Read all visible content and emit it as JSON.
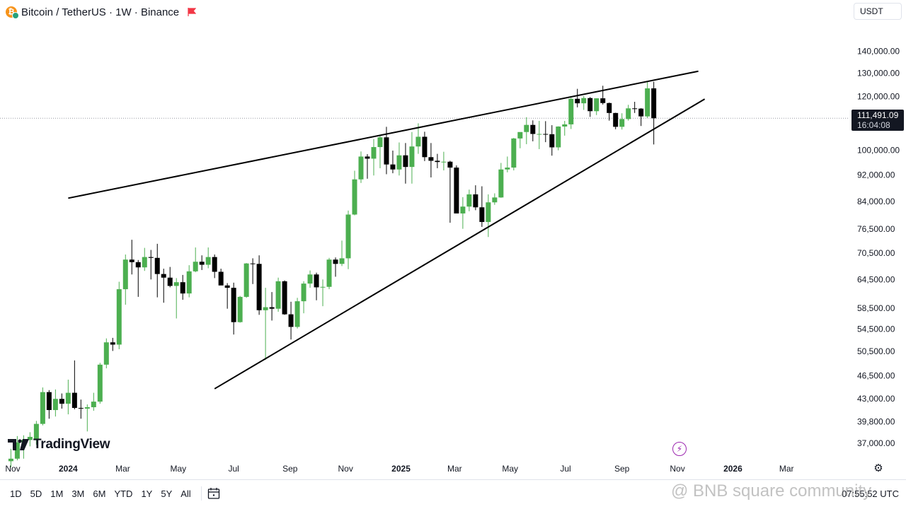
{
  "header": {
    "symbol_title": "Bitcoin / TetherUS · 1W · Binance",
    "coin_icon": "bitcoin-icon",
    "flag_icon": "flag-icon"
  },
  "currency": {
    "label": "USDT"
  },
  "price_badge": {
    "price": "111,491.09",
    "countdown": "16:04:08"
  },
  "logo": {
    "text": "TradingView"
  },
  "bottom_bar": {
    "ranges": [
      "1D",
      "5D",
      "1M",
      "3M",
      "6M",
      "YTD",
      "1Y",
      "5Y",
      "All"
    ],
    "clock": "07:55:52 UTC"
  },
  "watermark": {
    "text": "@ BNB square community"
  },
  "colors": {
    "up": "#4caf50",
    "down": "#000000",
    "line": "#000000",
    "last_price_line": "#9598a1"
  },
  "chart_data": {
    "type": "candlestick",
    "title": "Bitcoin / TetherUS · 1W · Binance",
    "scale": "log",
    "ylim": [
      35000,
      155000
    ],
    "y_ticks": [
      {
        "value": 140000,
        "label": "140,000.00"
      },
      {
        "value": 130000,
        "label": "130,000.00"
      },
      {
        "value": 120000,
        "label": "120,000.00"
      },
      {
        "value": 100000,
        "label": "100,000.00"
      },
      {
        "value": 92000,
        "label": "92,000.00"
      },
      {
        "value": 84000,
        "label": "84,000.00"
      },
      {
        "value": 76500,
        "label": "76,500.00"
      },
      {
        "value": 70500,
        "label": "70,500.00"
      },
      {
        "value": 64500,
        "label": "64,500.00"
      },
      {
        "value": 58500,
        "label": "58,500.00"
      },
      {
        "value": 54500,
        "label": "54,500.00"
      },
      {
        "value": 50500,
        "label": "50,500.00"
      },
      {
        "value": 46500,
        "label": "46,500.00"
      },
      {
        "value": 43000,
        "label": "43,000.00"
      },
      {
        "value": 39800,
        "label": "39,800.00"
      },
      {
        "value": 37000,
        "label": "37,000.00"
      }
    ],
    "x_ticks": [
      {
        "date": "2023-11-01",
        "label": "Nov"
      },
      {
        "date": "2024-01-01",
        "label": "2024"
      },
      {
        "date": "2024-03-01",
        "label": "Mar"
      },
      {
        "date": "2024-05-01",
        "label": "May"
      },
      {
        "date": "2024-07-01",
        "label": "Jul"
      },
      {
        "date": "2024-09-01",
        "label": "Sep"
      },
      {
        "date": "2024-11-01",
        "label": "Nov"
      },
      {
        "date": "2025-01-01",
        "label": "2025"
      },
      {
        "date": "2025-03-01",
        "label": "Mar"
      },
      {
        "date": "2025-05-01",
        "label": "May"
      },
      {
        "date": "2025-07-01",
        "label": "Jul"
      },
      {
        "date": "2025-09-01",
        "label": "Sep"
      },
      {
        "date": "2025-11-01",
        "label": "Nov"
      },
      {
        "date": "2026-01-01",
        "label": "2026"
      },
      {
        "date": "2026-03-01",
        "label": "Mar"
      }
    ],
    "xlim": [
      "2023-10-18",
      "2026-05-06"
    ],
    "last_price": 111491.09,
    "candles": [
      {
        "date": "2023-10-30",
        "o": 34800,
        "h": 36300,
        "l": 34100,
        "c": 35100
      },
      {
        "date": "2023-11-06",
        "o": 35100,
        "h": 37900,
        "l": 34900,
        "c": 37100
      },
      {
        "date": "2023-11-13",
        "o": 37100,
        "h": 38000,
        "l": 35100,
        "c": 37400
      },
      {
        "date": "2023-11-20",
        "o": 37400,
        "h": 38400,
        "l": 36600,
        "c": 37800
      },
      {
        "date": "2023-11-27",
        "o": 37500,
        "h": 39900,
        "l": 36800,
        "c": 39500
      },
      {
        "date": "2023-12-04",
        "o": 39500,
        "h": 44700,
        "l": 39300,
        "c": 44000
      },
      {
        "date": "2023-12-11",
        "o": 44000,
        "h": 44300,
        "l": 40200,
        "c": 41400
      },
      {
        "date": "2023-12-18",
        "o": 41400,
        "h": 44400,
        "l": 40500,
        "c": 43000
      },
      {
        "date": "2023-12-25",
        "o": 43000,
        "h": 43800,
        "l": 41600,
        "c": 42300
      },
      {
        "date": "2024-01-01",
        "o": 42300,
        "h": 45900,
        "l": 40800,
        "c": 43900
      },
      {
        "date": "2024-01-08",
        "o": 43900,
        "h": 49000,
        "l": 41500,
        "c": 41700
      },
      {
        "date": "2024-01-15",
        "o": 41700,
        "h": 42900,
        "l": 40200,
        "c": 41600
      },
      {
        "date": "2024-01-22",
        "o": 41600,
        "h": 42200,
        "l": 38500,
        "c": 41800
      },
      {
        "date": "2024-01-29",
        "o": 41800,
        "h": 43900,
        "l": 41300,
        "c": 42600
      },
      {
        "date": "2024-02-05",
        "o": 42600,
        "h": 48600,
        "l": 42300,
        "c": 48300
      },
      {
        "date": "2024-02-12",
        "o": 48300,
        "h": 52800,
        "l": 47700,
        "c": 52100
      },
      {
        "date": "2024-02-19",
        "o": 52100,
        "h": 52900,
        "l": 50600,
        "c": 51700
      },
      {
        "date": "2024-02-26",
        "o": 51700,
        "h": 64000,
        "l": 50900,
        "c": 62400
      },
      {
        "date": "2024-03-04",
        "o": 62400,
        "h": 70200,
        "l": 59200,
        "c": 69000
      },
      {
        "date": "2024-03-11",
        "o": 69000,
        "h": 73800,
        "l": 65600,
        "c": 68400
      },
      {
        "date": "2024-03-18",
        "o": 68400,
        "h": 68900,
        "l": 60800,
        "c": 67200
      },
      {
        "date": "2024-03-25",
        "o": 67200,
        "h": 71800,
        "l": 66400,
        "c": 69600
      },
      {
        "date": "2024-04-01",
        "o": 69600,
        "h": 71300,
        "l": 64500,
        "c": 69400
      },
      {
        "date": "2024-04-08",
        "o": 69400,
        "h": 72800,
        "l": 60700,
        "c": 65700
      },
      {
        "date": "2024-04-15",
        "o": 65700,
        "h": 66900,
        "l": 59600,
        "c": 64900
      },
      {
        "date": "2024-04-22",
        "o": 64900,
        "h": 67300,
        "l": 62800,
        "c": 63100
      },
      {
        "date": "2024-04-29",
        "o": 63100,
        "h": 64800,
        "l": 56500,
        "c": 63900
      },
      {
        "date": "2024-05-06",
        "o": 63900,
        "h": 65500,
        "l": 60200,
        "c": 61500
      },
      {
        "date": "2024-05-13",
        "o": 61500,
        "h": 67700,
        "l": 60700,
        "c": 66300
      },
      {
        "date": "2024-05-20",
        "o": 66300,
        "h": 71900,
        "l": 66100,
        "c": 68500
      },
      {
        "date": "2024-05-27",
        "o": 68500,
        "h": 70000,
        "l": 66600,
        "c": 67800
      },
      {
        "date": "2024-06-03",
        "o": 67800,
        "h": 71900,
        "l": 67000,
        "c": 69600
      },
      {
        "date": "2024-06-10",
        "o": 69600,
        "h": 70200,
        "l": 64800,
        "c": 66200
      },
      {
        "date": "2024-06-17",
        "o": 66200,
        "h": 66900,
        "l": 63400,
        "c": 63200
      },
      {
        "date": "2024-06-24",
        "o": 63200,
        "h": 63700,
        "l": 58400,
        "c": 62700
      },
      {
        "date": "2024-07-01",
        "o": 62700,
        "h": 63800,
        "l": 53500,
        "c": 55800
      },
      {
        "date": "2024-07-08",
        "o": 55800,
        "h": 61000,
        "l": 55700,
        "c": 60800
      },
      {
        "date": "2024-07-15",
        "o": 60800,
        "h": 68200,
        "l": 60600,
        "c": 68100
      },
      {
        "date": "2024-07-22",
        "o": 68100,
        "h": 69300,
        "l": 63500,
        "c": 68000
      },
      {
        "date": "2024-07-29",
        "o": 68000,
        "h": 70000,
        "l": 57200,
        "c": 58100
      },
      {
        "date": "2024-08-05",
        "o": 58100,
        "h": 62700,
        "l": 49100,
        "c": 58700
      },
      {
        "date": "2024-08-12",
        "o": 58700,
        "h": 61800,
        "l": 56100,
        "c": 58400
      },
      {
        "date": "2024-08-19",
        "o": 58400,
        "h": 64900,
        "l": 57800,
        "c": 64100
      },
      {
        "date": "2024-08-26",
        "o": 64100,
        "h": 64300,
        "l": 57200,
        "c": 57300
      },
      {
        "date": "2024-09-02",
        "o": 57300,
        "h": 59800,
        "l": 52600,
        "c": 54900
      },
      {
        "date": "2024-09-09",
        "o": 54900,
        "h": 60600,
        "l": 54600,
        "c": 59900
      },
      {
        "date": "2024-09-16",
        "o": 59900,
        "h": 64100,
        "l": 57500,
        "c": 63600
      },
      {
        "date": "2024-09-23",
        "o": 63600,
        "h": 66500,
        "l": 62700,
        "c": 65600
      },
      {
        "date": "2024-09-30",
        "o": 65600,
        "h": 66000,
        "l": 60100,
        "c": 62800
      },
      {
        "date": "2024-10-07",
        "o": 62800,
        "h": 64500,
        "l": 58900,
        "c": 62900
      },
      {
        "date": "2024-10-14",
        "o": 62900,
        "h": 69400,
        "l": 62400,
        "c": 69000
      },
      {
        "date": "2024-10-21",
        "o": 69000,
        "h": 69500,
        "l": 65100,
        "c": 68000
      },
      {
        "date": "2024-10-28",
        "o": 68000,
        "h": 73600,
        "l": 67500,
        "c": 69300
      },
      {
        "date": "2024-11-04",
        "o": 69300,
        "h": 81500,
        "l": 66800,
        "c": 80400
      },
      {
        "date": "2024-11-11",
        "o": 80400,
        "h": 93300,
        "l": 80200,
        "c": 90600
      },
      {
        "date": "2024-11-18",
        "o": 90600,
        "h": 99600,
        "l": 89500,
        "c": 97900
      },
      {
        "date": "2024-11-25",
        "o": 97900,
        "h": 98700,
        "l": 90800,
        "c": 97200
      },
      {
        "date": "2024-12-02",
        "o": 97200,
        "h": 103900,
        "l": 91800,
        "c": 101100
      },
      {
        "date": "2024-12-09",
        "o": 101100,
        "h": 105200,
        "l": 94100,
        "c": 104500
      },
      {
        "date": "2024-12-16",
        "o": 104500,
        "h": 108300,
        "l": 92200,
        "c": 95300
      },
      {
        "date": "2024-12-23",
        "o": 95300,
        "h": 99900,
        "l": 92500,
        "c": 93700
      },
      {
        "date": "2024-12-30",
        "o": 93700,
        "h": 102700,
        "l": 91800,
        "c": 98300
      },
      {
        "date": "2025-01-06",
        "o": 98300,
        "h": 102500,
        "l": 89300,
        "c": 94500
      },
      {
        "date": "2025-01-13",
        "o": 94500,
        "h": 106400,
        "l": 89300,
        "c": 101300
      },
      {
        "date": "2025-01-20",
        "o": 101300,
        "h": 109600,
        "l": 98800,
        "c": 104700
      },
      {
        "date": "2025-01-27",
        "o": 104700,
        "h": 106500,
        "l": 96400,
        "c": 97700
      },
      {
        "date": "2025-02-03",
        "o": 97700,
        "h": 102500,
        "l": 91200,
        "c": 96500
      },
      {
        "date": "2025-02-10",
        "o": 96500,
        "h": 98800,
        "l": 94100,
        "c": 96100
      },
      {
        "date": "2025-02-17",
        "o": 96100,
        "h": 99500,
        "l": 93400,
        "c": 96200
      },
      {
        "date": "2025-02-24",
        "o": 96200,
        "h": 96500,
        "l": 78200,
        "c": 94300
      },
      {
        "date": "2025-03-03",
        "o": 94300,
        "h": 95000,
        "l": 81500,
        "c": 80700
      },
      {
        "date": "2025-03-10",
        "o": 80700,
        "h": 85300,
        "l": 76600,
        "c": 82600
      },
      {
        "date": "2025-03-17",
        "o": 82600,
        "h": 87500,
        "l": 81300,
        "c": 86100
      },
      {
        "date": "2025-03-24",
        "o": 86100,
        "h": 88800,
        "l": 81600,
        "c": 82400
      },
      {
        "date": "2025-03-31",
        "o": 82400,
        "h": 88500,
        "l": 77100,
        "c": 78400
      },
      {
        "date": "2025-04-07",
        "o": 78400,
        "h": 86100,
        "l": 74500,
        "c": 83800
      },
      {
        "date": "2025-04-14",
        "o": 83800,
        "h": 86400,
        "l": 83100,
        "c": 85200
      },
      {
        "date": "2025-04-21",
        "o": 85200,
        "h": 95800,
        "l": 85100,
        "c": 93700
      },
      {
        "date": "2025-04-28",
        "o": 93700,
        "h": 97900,
        "l": 92800,
        "c": 94300
      },
      {
        "date": "2025-05-05",
        "o": 94300,
        "h": 104300,
        "l": 93400,
        "c": 104100
      },
      {
        "date": "2025-05-12",
        "o": 104100,
        "h": 105800,
        "l": 100700,
        "c": 106400
      },
      {
        "date": "2025-05-19",
        "o": 106400,
        "h": 111900,
        "l": 102100,
        "c": 109000
      },
      {
        "date": "2025-05-26",
        "o": 109000,
        "h": 110700,
        "l": 103100,
        "c": 105700
      },
      {
        "date": "2025-06-02",
        "o": 105700,
        "h": 110500,
        "l": 100400,
        "c": 105700
      },
      {
        "date": "2025-06-09",
        "o": 105700,
        "h": 110400,
        "l": 102800,
        "c": 105600
      },
      {
        "date": "2025-06-16",
        "o": 105600,
        "h": 108900,
        "l": 98200,
        "c": 101000
      },
      {
        "date": "2025-06-23",
        "o": 101000,
        "h": 108500,
        "l": 100000,
        "c": 108400
      },
      {
        "date": "2025-06-30",
        "o": 108400,
        "h": 110500,
        "l": 105100,
        "c": 109200
      },
      {
        "date": "2025-07-07",
        "o": 109200,
        "h": 119500,
        "l": 107500,
        "c": 119100
      },
      {
        "date": "2025-07-14",
        "o": 119100,
        "h": 123200,
        "l": 115700,
        "c": 117300
      },
      {
        "date": "2025-07-21",
        "o": 117300,
        "h": 120200,
        "l": 114700,
        "c": 119400
      },
      {
        "date": "2025-07-28",
        "o": 119400,
        "h": 119800,
        "l": 112000,
        "c": 114200
      },
      {
        "date": "2025-08-04",
        "o": 114200,
        "h": 119300,
        "l": 112700,
        "c": 119300
      },
      {
        "date": "2025-08-11",
        "o": 119300,
        "h": 124500,
        "l": 116800,
        "c": 117400
      },
      {
        "date": "2025-08-18",
        "o": 117400,
        "h": 117600,
        "l": 110600,
        "c": 113500
      },
      {
        "date": "2025-08-25",
        "o": 113500,
        "h": 113600,
        "l": 107400,
        "c": 108300
      },
      {
        "date": "2025-09-01",
        "o": 108300,
        "h": 113400,
        "l": 107300,
        "c": 111200
      },
      {
        "date": "2025-09-08",
        "o": 111200,
        "h": 116700,
        "l": 110600,
        "c": 115300
      },
      {
        "date": "2025-09-15",
        "o": 115300,
        "h": 117900,
        "l": 113500,
        "c": 115200
      },
      {
        "date": "2025-09-22",
        "o": 115200,
        "h": 115400,
        "l": 108600,
        "c": 112200
      },
      {
        "date": "2025-09-29",
        "o": 112200,
        "h": 126100,
        "l": 111600,
        "c": 123400
      },
      {
        "date": "2025-10-06",
        "o": 123400,
        "h": 126200,
        "l": 102000,
        "c": 111491
      }
    ],
    "trendlines": [
      {
        "name": "upper",
        "points": [
          {
            "date": "2024-01-01",
            "value": 85000
          },
          {
            "date": "2025-11-24",
            "value": 130800
          }
        ]
      },
      {
        "name": "lower",
        "points": [
          {
            "date": "2024-06-10",
            "value": 44500
          },
          {
            "date": "2025-12-01",
            "value": 119000
          }
        ]
      }
    ]
  }
}
